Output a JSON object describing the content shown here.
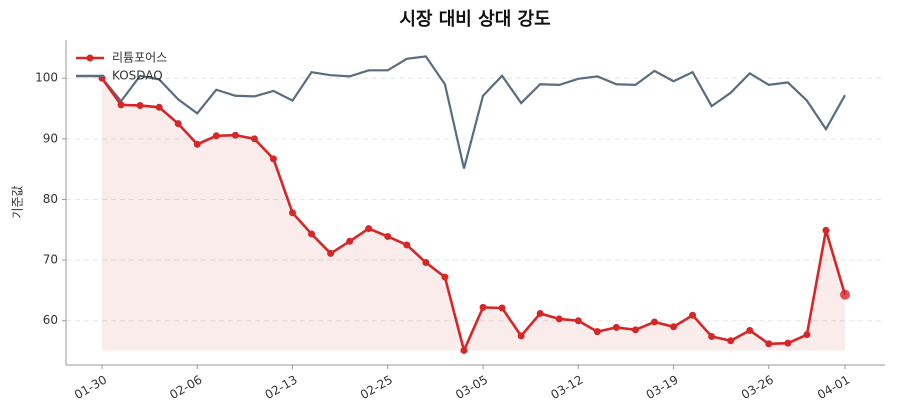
{
  "chart_data": {
    "type": "line",
    "title": "시장 대비 상대 강도",
    "y_label": "기준값",
    "categories": [
      "01-30",
      null,
      null,
      null,
      null,
      "02-06",
      null,
      null,
      null,
      null,
      "02-13",
      null,
      null,
      null,
      null,
      "02-25",
      null,
      null,
      null,
      null,
      "03-05",
      null,
      null,
      null,
      null,
      "03-12",
      null,
      null,
      null,
      null,
      "03-19",
      null,
      null,
      null,
      null,
      "03-26",
      null,
      null,
      null,
      "04-01"
    ],
    "series": [
      {
        "name": "리튬포어스",
        "color": "#d62728",
        "values": [
          100,
          95.6,
          95.5,
          95.2,
          92.5,
          89.1,
          90.5,
          90.6,
          90.0,
          86.7,
          77.8,
          74.3,
          71.1,
          73.1,
          75.2,
          73.9,
          72.5,
          69.6,
          67.2,
          55.1,
          62.2,
          62.1,
          57.5,
          61.2,
          60.3,
          60.0,
          58.2,
          58.9,
          58.5,
          59.8,
          59.0,
          60.9,
          57.4,
          56.7,
          58.4,
          56.2,
          56.3,
          57.7,
          74.9,
          64.3
        ]
      },
      {
        "name": "KOSDAQ",
        "color": "#5a6b82",
        "values": [
          100,
          96.2,
          100.4,
          99.8,
          96.5,
          94.2,
          98.1,
          97.1,
          97.0,
          97.9,
          96.3,
          101.0,
          100.5,
          100.3,
          101.3,
          101.3,
          103.2,
          103.6,
          99.0,
          85.1,
          97.1,
          100.4,
          95.9,
          99.0,
          98.9,
          99.9,
          100.3,
          99.0,
          98.9,
          101.2,
          99.5,
          101.0,
          95.4,
          97.6,
          100.8,
          98.9,
          99.3,
          96.3,
          91.6,
          97.2
        ]
      }
    ],
    "ylim": [
      52.7,
      106.3
    ],
    "yticks": [
      60,
      70,
      80,
      90,
      100
    ],
    "grid": true,
    "legend": "upper left"
  }
}
